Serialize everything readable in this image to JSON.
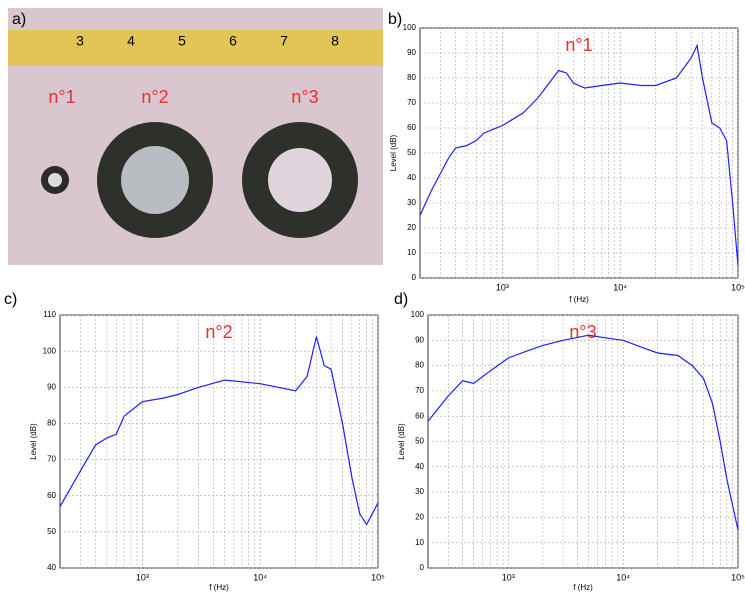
{
  "panels": [
    "a)",
    "b)",
    "c)",
    "d)"
  ],
  "photo": {
    "labels": [
      "n°1",
      "n°2",
      "n°3"
    ],
    "ruler": [
      "3",
      "4",
      "5",
      "6",
      "7",
      "8"
    ]
  },
  "chart_data": [
    {
      "type": "line",
      "annotation": "n°1",
      "x_label": "f (Hz)",
      "y_label": "Level (dB)",
      "log_x": true,
      "grid": true,
      "minor_grid": true,
      "xlim": [
        200,
        100000
      ],
      "xticks": [
        {
          "value": 1000,
          "label": "10³"
        },
        {
          "value": 10000,
          "label": "10⁴"
        },
        {
          "value": 100000,
          "label": "10⁵"
        }
      ],
      "ylim": [
        0,
        100
      ],
      "yticks": [
        0,
        10,
        20,
        30,
        40,
        50,
        60,
        70,
        80,
        90,
        100
      ],
      "series": [
        {
          "color": "#1f1fff",
          "x": [
            200,
            250,
            300,
            350,
            400,
            500,
            600,
            700,
            1000,
            1500,
            2000,
            2500,
            3000,
            3500,
            4000,
            5000,
            7000,
            10000,
            15000,
            20000,
            30000,
            40000,
            45000,
            50000,
            60000,
            70000,
            80000,
            90000,
            100000
          ],
          "values": [
            25,
            35,
            42,
            48,
            52,
            53,
            55,
            58,
            61,
            66,
            72,
            78,
            83,
            82,
            78,
            76,
            77,
            78,
            77,
            77,
            80,
            88,
            93,
            80,
            62,
            60,
            55,
            30,
            5
          ]
        }
      ]
    },
    {
      "type": "line",
      "annotation": "n°2",
      "x_label": "f (Hz)",
      "y_label": "Level (dB)",
      "log_x": true,
      "grid": true,
      "minor_grid": true,
      "xlim": [
        200,
        100000
      ],
      "xticks": [
        {
          "value": 1000,
          "label": "10³"
        },
        {
          "value": 10000,
          "label": "10⁴"
        },
        {
          "value": 100000,
          "label": "10⁵"
        }
      ],
      "ylim": [
        40,
        110
      ],
      "yticks": [
        40,
        50,
        60,
        70,
        80,
        90,
        100,
        110
      ],
      "series": [
        {
          "color": "#1f1fff",
          "x": [
            200,
            300,
            400,
            500,
            600,
            700,
            1000,
            1500,
            2000,
            3000,
            5000,
            10000,
            20000,
            25000,
            30000,
            35000,
            40000,
            50000,
            60000,
            70000,
            80000,
            100000
          ],
          "values": [
            57,
            67,
            74,
            76,
            77,
            82,
            86,
            87,
            88,
            90,
            92,
            91,
            89,
            93,
            104,
            96,
            95,
            80,
            65,
            55,
            52,
            58
          ]
        }
      ]
    },
    {
      "type": "line",
      "annotation": "n°3",
      "x_label": "f (Hz)",
      "y_label": "Level (dB)",
      "log_x": true,
      "grid": true,
      "minor_grid": true,
      "xlim": [
        200,
        100000
      ],
      "xticks": [
        {
          "value": 1000,
          "label": "10³"
        },
        {
          "value": 10000,
          "label": "10⁴"
        },
        {
          "value": 100000,
          "label": "10⁵"
        }
      ],
      "ylim": [
        0,
        100
      ],
      "yticks": [
        0,
        10,
        20,
        30,
        40,
        50,
        60,
        70,
        80,
        90,
        100
      ],
      "series": [
        {
          "color": "#1f1fff",
          "x": [
            200,
            300,
            400,
            500,
            700,
            1000,
            1500,
            2000,
            3000,
            5000,
            7000,
            10000,
            15000,
            20000,
            30000,
            40000,
            50000,
            60000,
            70000,
            80000,
            100000
          ],
          "values": [
            58,
            68,
            74,
            73,
            78,
            83,
            86,
            88,
            90,
            92,
            91,
            90,
            87,
            85,
            84,
            80,
            75,
            65,
            50,
            35,
            15
          ]
        }
      ]
    }
  ]
}
